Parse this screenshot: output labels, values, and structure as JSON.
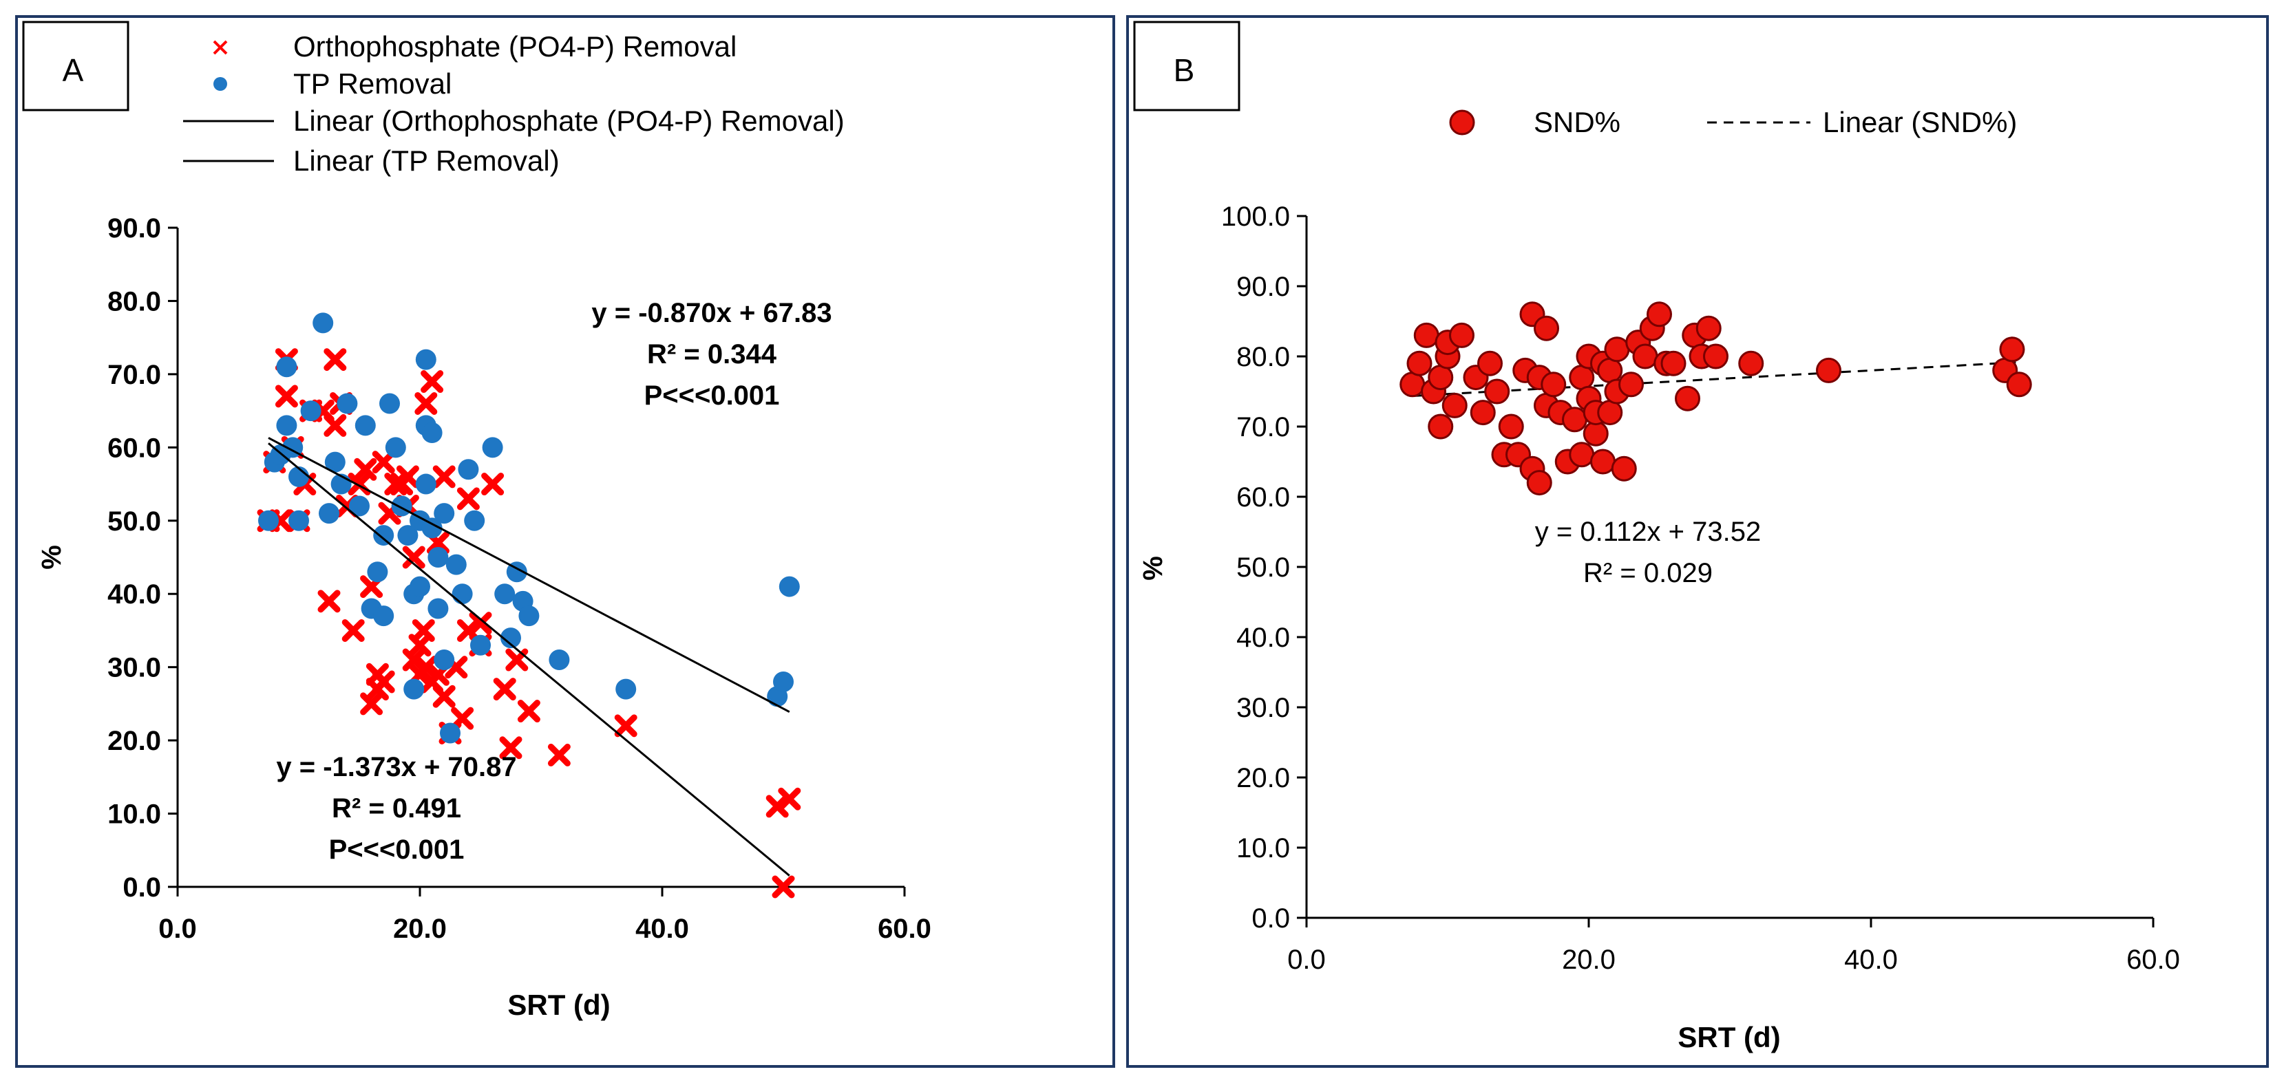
{
  "chart_data": [
    {
      "type": "scatter",
      "panel_label": "A",
      "xlabel": "SRT (d)",
      "ylabel": "%",
      "xlim": [
        0,
        60
      ],
      "ylim": [
        0,
        90
      ],
      "xticks": [
        "0.0",
        "20.0",
        "40.0",
        "60.0"
      ],
      "yticks": [
        "0.0",
        "10.0",
        "20.0",
        "30.0",
        "40.0",
        "50.0",
        "60.0",
        "70.0",
        "80.0",
        "90.0"
      ],
      "legend_position": "top",
      "legend": [
        {
          "label": "Orthophosphate (PO4-P) Removal",
          "marker": "x",
          "color": "#ff0000"
        },
        {
          "label": "TP Removal",
          "marker": "circle",
          "color": "#1f77c4"
        },
        {
          "label": "Linear (Orthophosphate (PO4-P) Removal)",
          "marker": "line",
          "color": "#000000"
        },
        {
          "label": "Linear (TP Removal)",
          "marker": "line",
          "color": "#000000"
        }
      ],
      "series": [
        {
          "name": "Orthophosphate (PO4-P) Removal",
          "color": "#ff0000",
          "marker": "x",
          "points": [
            [
              7.5,
              50
            ],
            [
              8,
              58
            ],
            [
              8.5,
              50
            ],
            [
              9,
              72
            ],
            [
              9,
              67
            ],
            [
              9.5,
              60
            ],
            [
              10,
              50
            ],
            [
              10.5,
              55
            ],
            [
              11,
              65
            ],
            [
              12,
              65
            ],
            [
              12.5,
              39
            ],
            [
              13,
              63
            ],
            [
              13,
              72
            ],
            [
              13.5,
              66
            ],
            [
              14,
              52
            ],
            [
              14.5,
              35
            ],
            [
              15,
              55
            ],
            [
              15.5,
              57
            ],
            [
              16,
              41
            ],
            [
              16,
              25
            ],
            [
              16.5,
              27
            ],
            [
              16.5,
              29
            ],
            [
              17,
              28
            ],
            [
              17,
              58
            ],
            [
              17.5,
              51
            ],
            [
              18,
              55
            ],
            [
              18.5,
              55
            ],
            [
              19,
              56
            ],
            [
              19,
              52
            ],
            [
              19.5,
              45
            ],
            [
              19.5,
              31
            ],
            [
              20,
              29
            ],
            [
              20,
              33
            ],
            [
              20.3,
              35
            ],
            [
              20.5,
              30
            ],
            [
              20.5,
              66
            ],
            [
              21,
              69
            ],
            [
              21,
              28
            ],
            [
              21.5,
              29
            ],
            [
              21.5,
              47
            ],
            [
              22,
              26
            ],
            [
              22,
              56
            ],
            [
              22.5,
              21
            ],
            [
              23,
              30
            ],
            [
              23.5,
              23
            ],
            [
              24,
              35
            ],
            [
              24,
              53
            ],
            [
              25,
              33
            ],
            [
              25,
              36
            ],
            [
              26,
              55
            ],
            [
              27,
              27
            ],
            [
              27.5,
              19
            ],
            [
              28,
              31
            ],
            [
              29,
              24
            ],
            [
              31.5,
              18
            ],
            [
              37,
              22
            ],
            [
              49.5,
              11
            ],
            [
              50,
              0
            ],
            [
              50.5,
              12
            ]
          ]
        },
        {
          "name": "TP Removal",
          "color": "#1f77c4",
          "marker": "circle",
          "points": [
            [
              7.5,
              50
            ],
            [
              8,
              58
            ],
            [
              8.5,
              59
            ],
            [
              9,
              63
            ],
            [
              9,
              71
            ],
            [
              9.5,
              60
            ],
            [
              10,
              50
            ],
            [
              10,
              56
            ],
            [
              11,
              65
            ],
            [
              12,
              77
            ],
            [
              12.5,
              51
            ],
            [
              13,
              58
            ],
            [
              13.5,
              55
            ],
            [
              14,
              66
            ],
            [
              15,
              52
            ],
            [
              15.5,
              63
            ],
            [
              16,
              38
            ],
            [
              16.5,
              43
            ],
            [
              17,
              37
            ],
            [
              17,
              48
            ],
            [
              17.5,
              66
            ],
            [
              18,
              60
            ],
            [
              18.5,
              52
            ],
            [
              19,
              48
            ],
            [
              19.5,
              27
            ],
            [
              19.5,
              40
            ],
            [
              20,
              41
            ],
            [
              20,
              50
            ],
            [
              20.5,
              72
            ],
            [
              20.5,
              55
            ],
            [
              20.5,
              63
            ],
            [
              21,
              62
            ],
            [
              21,
              49
            ],
            [
              21.5,
              45
            ],
            [
              21.5,
              38
            ],
            [
              22,
              51
            ],
            [
              22,
              31
            ],
            [
              22.5,
              21
            ],
            [
              23,
              44
            ],
            [
              23.5,
              40
            ],
            [
              24,
              57
            ],
            [
              24.5,
              50
            ],
            [
              25,
              33
            ],
            [
              26,
              60
            ],
            [
              27,
              40
            ],
            [
              27.5,
              34
            ],
            [
              28,
              43
            ],
            [
              28.5,
              39
            ],
            [
              29,
              37
            ],
            [
              31.5,
              31
            ],
            [
              37,
              27
            ],
            [
              49.5,
              26
            ],
            [
              50,
              28
            ],
            [
              50.5,
              41
            ]
          ]
        }
      ],
      "trendlines": [
        {
          "name": "Linear (Orthophosphate (PO4-P) Removal)",
          "slope": -1.373,
          "intercept": 70.87,
          "x_range": [
            7.5,
            50.5
          ]
        },
        {
          "name": "Linear (TP Removal)",
          "slope": -0.87,
          "intercept": 67.83,
          "x_range": [
            7.5,
            50.5
          ]
        }
      ],
      "annotations": {
        "tp_eq": "y = -0.870x + 67.83",
        "tp_r2": "R² = 0.344",
        "tp_p": "P<<<0.001",
        "po4_eq": "y = -1.373x + 70.87",
        "po4_r2": "R² = 0.491",
        "po4_p": "P<<<0.001"
      }
    },
    {
      "type": "scatter",
      "panel_label": "B",
      "xlabel": "SRT (d)",
      "ylabel": "%",
      "xlim": [
        0,
        60
      ],
      "ylim": [
        0,
        100
      ],
      "xticks": [
        "0.0",
        "20.0",
        "40.0",
        "60.0"
      ],
      "yticks": [
        "0.0",
        "10.0",
        "20.0",
        "30.0",
        "40.0",
        "50.0",
        "60.0",
        "70.0",
        "80.0",
        "90.0",
        "100.0"
      ],
      "legend_position": "top",
      "legend": [
        {
          "label": "SND%",
          "marker": "circle",
          "color": "#ff0000"
        },
        {
          "label": "Linear (SND%)",
          "marker": "dashed-line",
          "color": "#000000"
        }
      ],
      "series": [
        {
          "name": "SND%",
          "color": "#ff0000",
          "marker": "circle",
          "points": [
            [
              7.5,
              76
            ],
            [
              8,
              79
            ],
            [
              8.5,
              83
            ],
            [
              9,
              75
            ],
            [
              9.5,
              70
            ],
            [
              9.5,
              77
            ],
            [
              10,
              80
            ],
            [
              10,
              82
            ],
            [
              10.5,
              73
            ],
            [
              11,
              83
            ],
            [
              12,
              77
            ],
            [
              12.5,
              72
            ],
            [
              13,
              79
            ],
            [
              13.5,
              75
            ],
            [
              14,
              66
            ],
            [
              14.5,
              70
            ],
            [
              15,
              66
            ],
            [
              15.5,
              78
            ],
            [
              16,
              86
            ],
            [
              16,
              64
            ],
            [
              16.5,
              62
            ],
            [
              16.5,
              77
            ],
            [
              17,
              73
            ],
            [
              17,
              84
            ],
            [
              17.5,
              76
            ],
            [
              18,
              72
            ],
            [
              18.5,
              65
            ],
            [
              19,
              71
            ],
            [
              19.5,
              77
            ],
            [
              19.5,
              66
            ],
            [
              20,
              74
            ],
            [
              20,
              80
            ],
            [
              20.5,
              69
            ],
            [
              20.5,
              72
            ],
            [
              21,
              79
            ],
            [
              21,
              65
            ],
            [
              21.5,
              78
            ],
            [
              21.5,
              72
            ],
            [
              22,
              81
            ],
            [
              22,
              75
            ],
            [
              22.5,
              64
            ],
            [
              23,
              76
            ],
            [
              23.5,
              82
            ],
            [
              24,
              80
            ],
            [
              24.5,
              84
            ],
            [
              25,
              86
            ],
            [
              25.5,
              79
            ],
            [
              26,
              79
            ],
            [
              27,
              74
            ],
            [
              27.5,
              83
            ],
            [
              28,
              80
            ],
            [
              28.5,
              84
            ],
            [
              29,
              80
            ],
            [
              31.5,
              79
            ],
            [
              37,
              78
            ],
            [
              49.5,
              78
            ],
            [
              50,
              81
            ],
            [
              50.5,
              76
            ]
          ]
        }
      ],
      "trendlines": [
        {
          "name": "Linear (SND%)",
          "slope": 0.112,
          "intercept": 73.52,
          "x_range": [
            7.5,
            50.5
          ],
          "style": "dashed"
        }
      ],
      "annotations": {
        "snd_eq": "y = 0.112x + 73.52",
        "snd_r2": "R² = 0.029"
      }
    }
  ]
}
